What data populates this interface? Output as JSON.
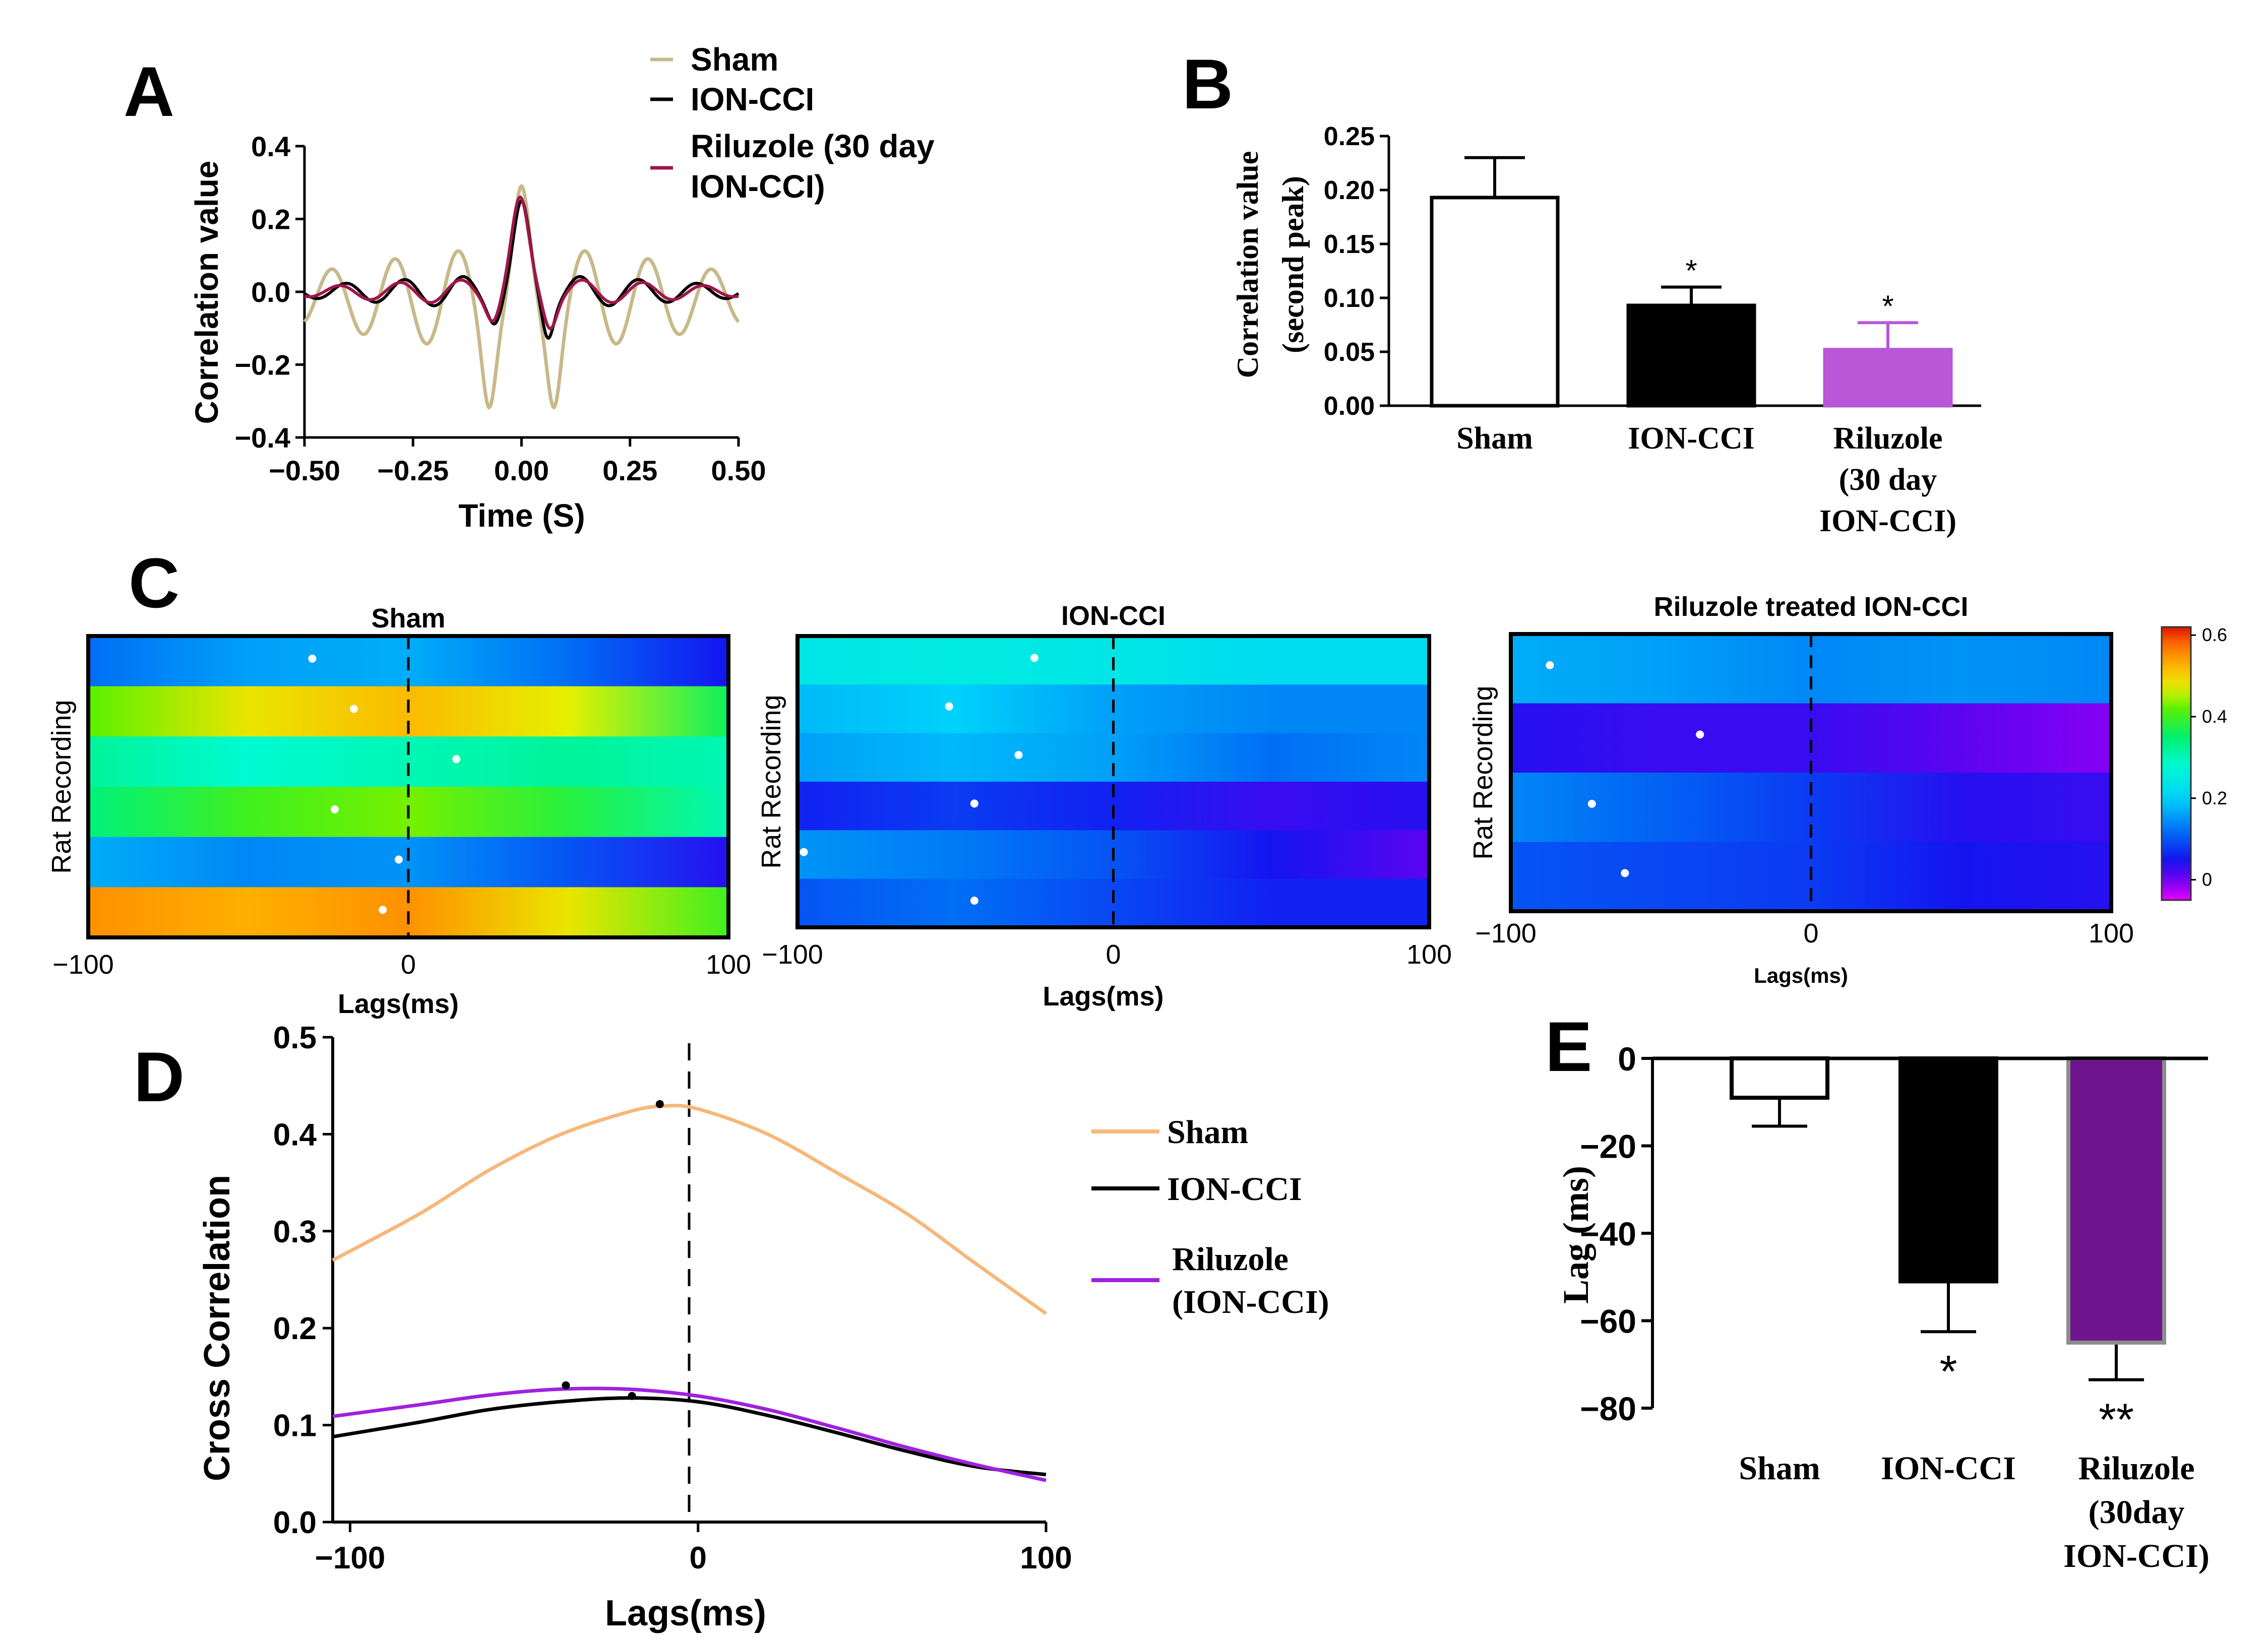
{
  "panel_letters": [
    "A",
    "B",
    "C",
    "D",
    "E"
  ],
  "colors": {
    "sham_a": "#c8b98a",
    "ion_cci": "#000000",
    "riluzole_a": "#a0164a",
    "sham_d": "#f5b87a",
    "riluzole_d": "#a020e0",
    "riluzole_bar_b": "#b857d8",
    "riluzole_bar_e": "#6e148c",
    "riluzole_bar_e_edge": "#8c8c8c"
  },
  "chart_data": [
    {
      "id": "A",
      "type": "line",
      "xlabel": "Time (S)",
      "ylabel": "Correlation value",
      "xlim": [
        -0.5,
        0.5
      ],
      "ylim": [
        -0.4,
        0.4
      ],
      "xticks": [
        "−0.50",
        "−0.25",
        "0.00",
        "0.25",
        "0.50"
      ],
      "yticks": [
        "−0.4",
        "−0.2",
        "0.0",
        "0.2",
        "0.4"
      ],
      "legend": [
        "Sham",
        "ION-CCI",
        "Riluzole (30 day",
        "ION-CCI)"
      ],
      "series": [
        {
          "name": "Sham",
          "color": "#c8b98a",
          "desc": "oscillating cross-correlogram, main peak 0.29 at 0 s, side peaks ~0.2 at ±0.15 s, troughs ~−0.29 at ±0.08 s"
        },
        {
          "name": "ION-CCI",
          "color": "#000000",
          "desc": "peak 0.25 at 0 s, small ripples ~±0.05"
        },
        {
          "name": "Riluzole (30 day ION-CCI)",
          "color": "#a0164a",
          "desc": "peak 0.25 at 0 s, small ripples ~±0.04"
        }
      ]
    },
    {
      "id": "B",
      "type": "bar",
      "ylabel_line1": "Correlation value",
      "ylabel_line2": "(second peak)",
      "ylim": [
        0,
        0.25
      ],
      "yticks": [
        "0.00",
        "0.05",
        "0.10",
        "0.15",
        "0.20",
        "0.25"
      ],
      "categories": [
        "Sham",
        "ION-CCI",
        "Riluzole (30 day ION-CCI)"
      ],
      "category_labels": [
        [
          "Sham"
        ],
        [
          "ION-CCI"
        ],
        [
          "Riluzole",
          "(30 day",
          "ION-CCI)"
        ]
      ],
      "values": [
        0.193,
        0.093,
        0.052
      ],
      "errors": [
        0.037,
        0.017,
        0.025
      ],
      "significance": [
        "",
        "*",
        "*"
      ]
    },
    {
      "id": "C",
      "type": "heatmap",
      "ylabel": "Rat Recording",
      "xlabel": "Lags(ms)",
      "xticks": [
        "−100",
        "0",
        "100"
      ],
      "colorbar_ticks": [
        "0.6",
        "0.4",
        "0.2",
        "0"
      ],
      "colorbar_range": [
        -0.05,
        0.62
      ],
      "panels": [
        {
          "title": "Sham",
          "rows": [
            {
              "values": [
                0.12,
                0.16,
                0.17,
                0.12,
                0.05
              ],
              "peak_lag": -30
            },
            {
              "values": [
                0.42,
                0.48,
                0.52,
                0.47,
                0.36
              ],
              "peak_lag": -17
            },
            {
              "values": [
                0.32,
                0.28,
                0.3,
                0.32,
                0.3
              ],
              "peak_lag": 15
            },
            {
              "values": [
                0.34,
                0.4,
                0.43,
                0.38,
                0.3
              ],
              "peak_lag": -23
            },
            {
              "values": [
                0.17,
                0.14,
                0.15,
                0.1,
                0.04
              ],
              "peak_lag": -3
            },
            {
              "values": [
                0.55,
                0.53,
                0.55,
                0.48,
                0.4
              ],
              "peak_lag": -8
            }
          ]
        },
        {
          "title": "ION-CCI",
          "rows": [
            {
              "values": [
                0.24,
                0.25,
                0.24,
                0.22,
                0.22
              ],
              "peak_lag": -25
            },
            {
              "values": [
                0.18,
                0.2,
                0.16,
                0.14,
                0.14
              ],
              "peak_lag": -52
            },
            {
              "values": [
                0.16,
                0.18,
                0.16,
                0.12,
                0.14
              ],
              "peak_lag": -30
            },
            {
              "values": [
                0.06,
                0.08,
                0.06,
                0.03,
                0.04
              ],
              "peak_lag": -44
            },
            {
              "values": [
                0.15,
                0.13,
                0.1,
                0.05,
                0.01
              ],
              "peak_lag": -98
            },
            {
              "values": [
                0.1,
                0.12,
                0.09,
                0.06,
                0.06
              ],
              "peak_lag": -44
            }
          ]
        },
        {
          "title": "Riluzole treated ION-CCI",
          "rows": [
            {
              "values": [
                0.17,
                0.16,
                0.14,
                0.15,
                0.14
              ],
              "peak_lag": -87
            },
            {
              "values": [
                0.04,
                0.03,
                0.03,
                0.01,
                -0.01
              ],
              "peak_lag": -37
            },
            {
              "values": [
                0.14,
                0.11,
                0.08,
                0.04,
                0.03
              ],
              "peak_lag": -73
            },
            {
              "values": [
                0.1,
                0.09,
                0.08,
                0.05,
                0.04
              ],
              "peak_lag": -62
            }
          ]
        }
      ]
    },
    {
      "id": "D",
      "type": "line",
      "xlabel": "Lags(ms)",
      "ylabel": "Cross Correlation",
      "xlim": [
        -105,
        100
      ],
      "ylim": [
        0,
        0.5
      ],
      "xticks": [
        "−100",
        "0",
        "100"
      ],
      "yticks": [
        "0.0",
        "0.1",
        "0.2",
        "0.3",
        "0.4",
        "0.5"
      ],
      "legend": [
        "Sham",
        "ION-CCI",
        "Riluzole",
        "(ION-CCI)"
      ],
      "series": [
        {
          "name": "Sham",
          "color": "#f5b87a",
          "x": [
            -105,
            -80,
            -60,
            -40,
            -20,
            -10,
            0,
            20,
            40,
            60,
            80,
            100
          ],
          "y": [
            0.27,
            0.318,
            0.363,
            0.399,
            0.423,
            0.429,
            0.426,
            0.4,
            0.36,
            0.318,
            0.266,
            0.215
          ],
          "peak": [
            -11,
            0.431
          ]
        },
        {
          "name": "ION-CCI",
          "color": "#000000",
          "x": [
            -105,
            -80,
            -60,
            -40,
            -20,
            0,
            20,
            40,
            60,
            80,
            100
          ],
          "y": [
            0.088,
            0.103,
            0.116,
            0.124,
            0.128,
            0.124,
            0.11,
            0.092,
            0.073,
            0.057,
            0.049
          ],
          "peak": [
            -19,
            0.13
          ]
        },
        {
          "name": "Riluzole (ION-CCI)",
          "color": "#a020e0",
          "x": [
            -105,
            -80,
            -60,
            -40,
            -20,
            0,
            20,
            40,
            60,
            80,
            100
          ],
          "y": [
            0.109,
            0.121,
            0.131,
            0.137,
            0.137,
            0.13,
            0.116,
            0.097,
            0.077,
            0.059,
            0.043
          ],
          "peak": [
            -38,
            0.141
          ]
        }
      ]
    },
    {
      "id": "E",
      "type": "bar",
      "ylabel": "Lag (ms)",
      "ylim": [
        -80,
        0
      ],
      "yticks": [
        "0",
        "−20",
        "−40",
        "−60",
        "−80"
      ],
      "categories": [
        "Sham",
        "ION-CCI",
        "Riluzole (30day ION-CCI)"
      ],
      "category_labels": [
        [
          "Sham"
        ],
        [
          "ION-CCI"
        ],
        [
          "Riluzole",
          "(30day",
          "ION-CCI)"
        ]
      ],
      "values": [
        -9,
        -51,
        -65
      ],
      "errors": [
        6.5,
        11.5,
        8.5
      ],
      "significance": [
        "",
        "*",
        "**"
      ]
    }
  ]
}
